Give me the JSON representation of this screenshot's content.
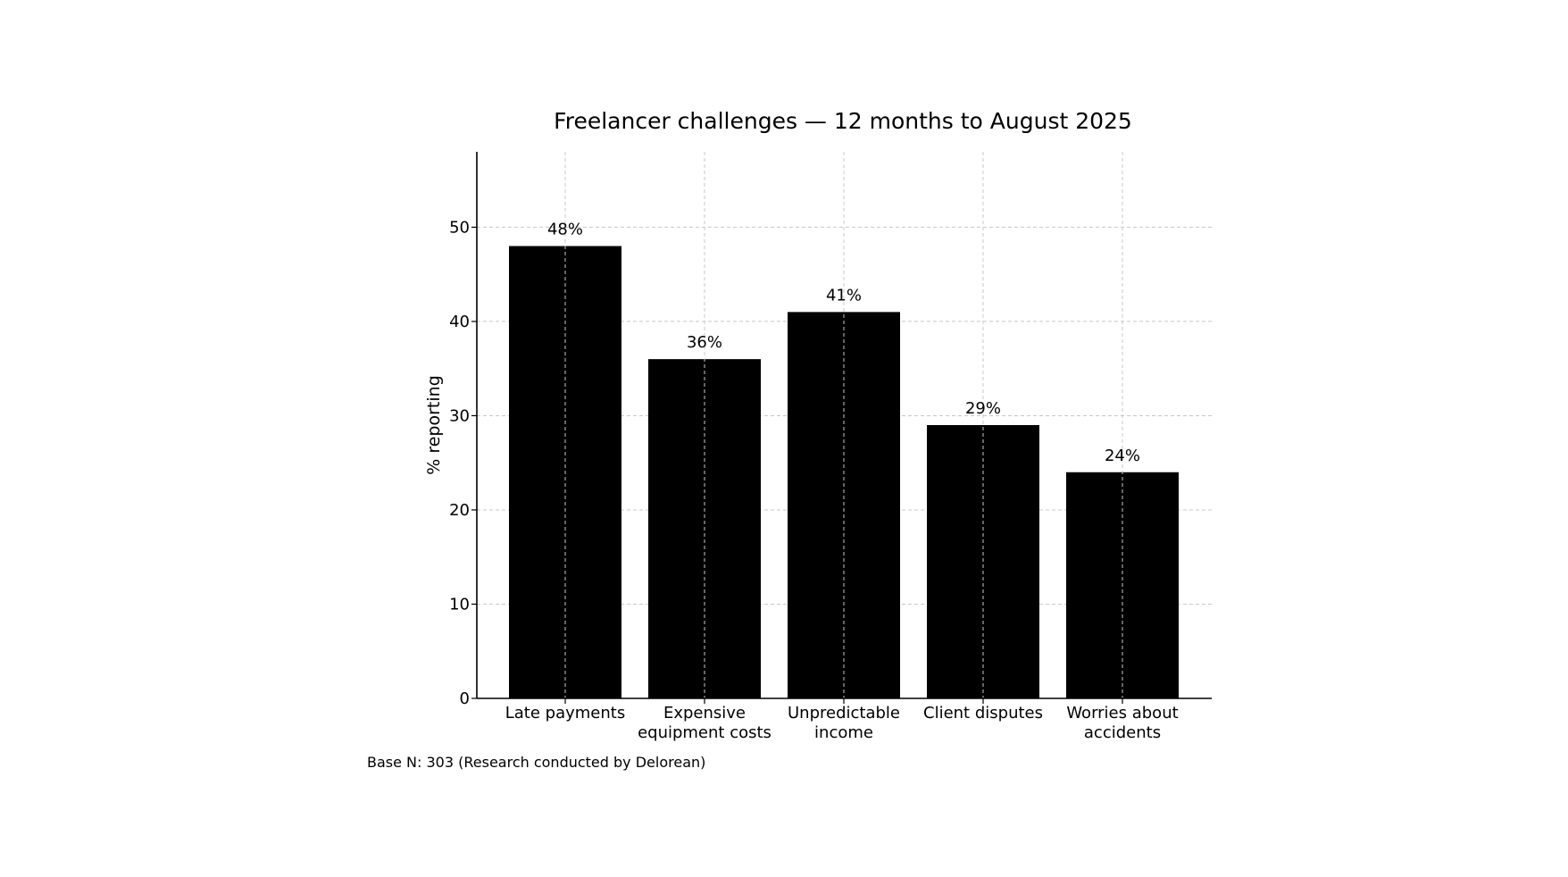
{
  "chart_data": {
    "type": "bar",
    "title": "Freelancer challenges — 12 months to August 2025",
    "xlabel": "",
    "ylabel": "% reporting",
    "ylim": [
      0,
      58
    ],
    "yticks": [
      0,
      10,
      20,
      30,
      40,
      50
    ],
    "grid": true,
    "categories": [
      [
        "Late payments"
      ],
      [
        "Expensive",
        "equipment costs"
      ],
      [
        "Unpredictable",
        "income"
      ],
      [
        "Client disputes"
      ],
      [
        "Worries about",
        "accidents"
      ]
    ],
    "values": [
      48,
      36,
      41,
      29,
      24
    ],
    "data_labels": [
      "48%",
      "36%",
      "41%",
      "29%",
      "24%"
    ],
    "bar_color": "#000000",
    "note": "Base N: 303 (Research conducted by Delorean)"
  }
}
